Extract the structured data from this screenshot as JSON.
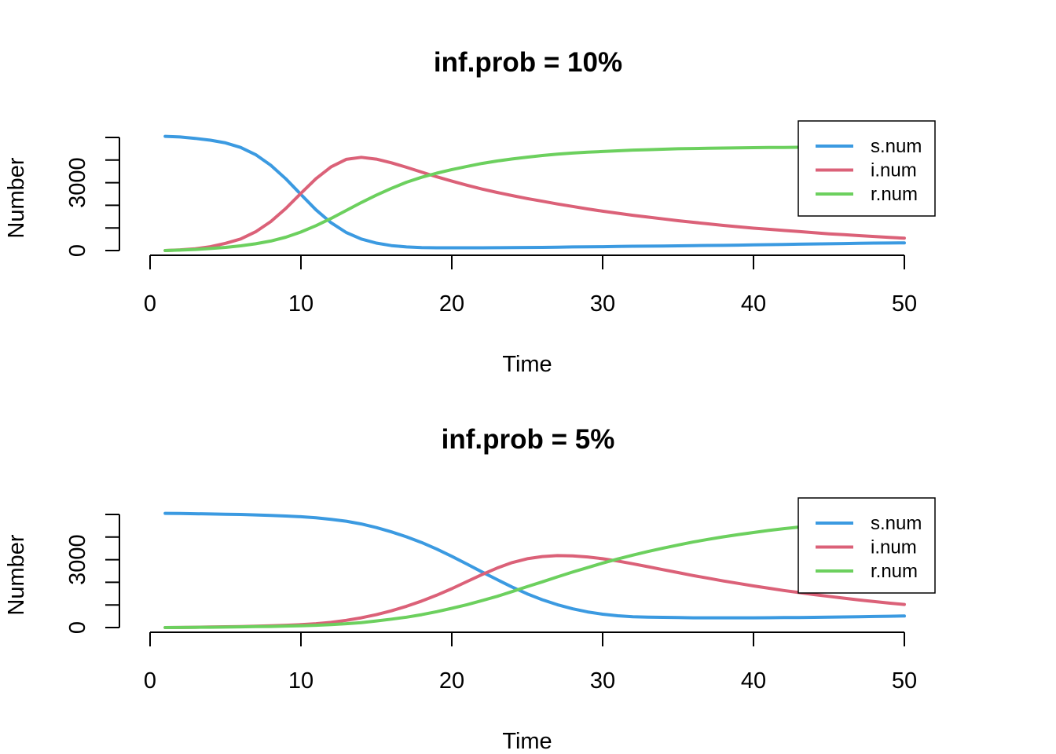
{
  "colors": {
    "s.num": "#3B9AE1",
    "i.num": "#DB6178",
    "r.num": "#6CD05E"
  },
  "chart_data": [
    {
      "type": "line",
      "title": "inf.prob = 10%",
      "xlabel": "Time",
      "ylabel": "Number",
      "xlim": [
        0,
        50
      ],
      "ylim": [
        0,
        5000
      ],
      "xticks": [
        0,
        10,
        20,
        30,
        40,
        50
      ],
      "yticks": [
        0,
        1000,
        2000,
        3000,
        4000,
        5000
      ],
      "ytick_labels": [
        "0",
        "",
        "",
        "3000",
        "",
        ""
      ],
      "legend_position": "top-right",
      "x": [
        1,
        2,
        3,
        4,
        5,
        6,
        7,
        8,
        9,
        10,
        11,
        12,
        13,
        14,
        15,
        16,
        17,
        18,
        19,
        20,
        21,
        22,
        23,
        24,
        25,
        26,
        27,
        28,
        29,
        30,
        31,
        32,
        33,
        34,
        35,
        36,
        37,
        38,
        39,
        40,
        41,
        42,
        43,
        44,
        45,
        46,
        47,
        48,
        49,
        50
      ],
      "series": [
        {
          "name": "s.num",
          "values": [
            5050,
            5020,
            4960,
            4880,
            4760,
            4560,
            4240,
            3770,
            3170,
            2480,
            1800,
            1230,
            800,
            510,
            330,
            220,
            160,
            130,
            120,
            120,
            120,
            120,
            125,
            130,
            135,
            140,
            150,
            160,
            165,
            170,
            180,
            190,
            195,
            200,
            210,
            220,
            225,
            230,
            240,
            250,
            260,
            270,
            280,
            290,
            300,
            310,
            320,
            330,
            335,
            340
          ]
        },
        {
          "name": "i.num",
          "values": [
            0,
            30,
            80,
            170,
            320,
            510,
            830,
            1280,
            1860,
            2530,
            3180,
            3700,
            4030,
            4120,
            4040,
            3880,
            3680,
            3470,
            3260,
            3070,
            2890,
            2720,
            2570,
            2430,
            2300,
            2180,
            2060,
            1950,
            1840,
            1740,
            1650,
            1560,
            1480,
            1400,
            1320,
            1250,
            1180,
            1110,
            1050,
            990,
            940,
            890,
            840,
            790,
            740,
            700,
            660,
            620,
            580,
            550
          ]
        },
        {
          "name": "r.num",
          "values": [
            0,
            20,
            50,
            90,
            140,
            210,
            300,
            420,
            590,
            820,
            1100,
            1420,
            1770,
            2120,
            2450,
            2750,
            3020,
            3240,
            3420,
            3580,
            3720,
            3850,
            3960,
            4050,
            4130,
            4200,
            4260,
            4310,
            4350,
            4380,
            4410,
            4440,
            4460,
            4480,
            4500,
            4510,
            4520,
            4530,
            4540,
            4550,
            4555,
            4560,
            4565,
            4570,
            4575,
            4580,
            4585,
            4590,
            4595,
            4600
          ]
        }
      ]
    },
    {
      "type": "line",
      "title": "inf.prob = 5%",
      "xlabel": "Time",
      "ylabel": "Number",
      "xlim": [
        0,
        50
      ],
      "ylim": [
        0,
        5000
      ],
      "xticks": [
        0,
        10,
        20,
        30,
        40,
        50
      ],
      "yticks": [
        0,
        1000,
        2000,
        3000,
        4000,
        5000
      ],
      "ytick_labels": [
        "0",
        "",
        "",
        "3000",
        "",
        ""
      ],
      "legend_position": "top-right",
      "x": [
        1,
        2,
        3,
        4,
        5,
        6,
        7,
        8,
        9,
        10,
        11,
        12,
        13,
        14,
        15,
        16,
        17,
        18,
        19,
        20,
        21,
        22,
        23,
        24,
        25,
        26,
        27,
        28,
        29,
        30,
        31,
        32,
        33,
        34,
        35,
        36,
        37,
        38,
        39,
        40,
        41,
        42,
        43,
        44,
        45,
        46,
        47,
        48,
        49,
        50
      ],
      "series": [
        {
          "name": "s.num",
          "values": [
            5050,
            5040,
            5030,
            5020,
            5010,
            5000,
            4980,
            4960,
            4930,
            4900,
            4850,
            4780,
            4700,
            4580,
            4420,
            4230,
            4010,
            3760,
            3470,
            3150,
            2810,
            2460,
            2120,
            1790,
            1490,
            1230,
            1010,
            830,
            690,
            590,
            520,
            480,
            460,
            450,
            440,
            430,
            430,
            430,
            430,
            430,
            435,
            440,
            445,
            450,
            460,
            470,
            480,
            490,
            500,
            510
          ]
        },
        {
          "name": "i.num",
          "values": [
            0,
            5,
            15,
            25,
            35,
            45,
            60,
            80,
            100,
            130,
            170,
            230,
            320,
            430,
            570,
            740,
            940,
            1170,
            1430,
            1720,
            2030,
            2340,
            2630,
            2870,
            3040,
            3140,
            3180,
            3170,
            3120,
            3040,
            2940,
            2820,
            2690,
            2560,
            2430,
            2300,
            2180,
            2060,
            1950,
            1840,
            1740,
            1640,
            1550,
            1460,
            1380,
            1300,
            1220,
            1150,
            1080,
            1020
          ]
        },
        {
          "name": "r.num",
          "values": [
            0,
            5,
            10,
            15,
            20,
            30,
            40,
            50,
            65,
            80,
            100,
            130,
            170,
            220,
            290,
            370,
            460,
            570,
            700,
            850,
            1010,
            1190,
            1380,
            1590,
            1810,
            2020,
            2240,
            2450,
            2650,
            2850,
            3030,
            3200,
            3360,
            3510,
            3650,
            3780,
            3900,
            4010,
            4110,
            4200,
            4290,
            4370,
            4440,
            4510,
            4570,
            4630,
            4690,
            4740,
            4790,
            4830
          ]
        }
      ]
    }
  ]
}
